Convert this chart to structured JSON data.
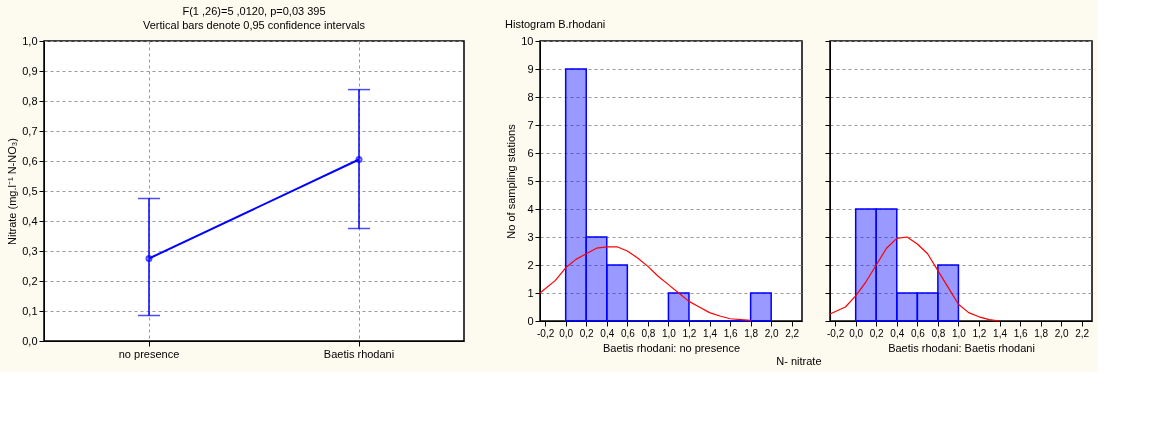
{
  "chart_data": [
    {
      "type": "line",
      "title": "F(1 ,26)=5 ,0120, p=0,03 395",
      "subtitle": "Vertical bars denote 0,95 confidence intervals",
      "ylabel": "Nitrate (mg.l⁻¹ N-NO₃)",
      "categories": [
        "no presence",
        "Baetis rhodani"
      ],
      "series": [
        {
          "color": "#0000ff",
          "values": [
            0.275,
            0.605
          ],
          "errors": [
            [
              0.085,
              0.475
            ],
            [
              0.375,
              0.838
            ]
          ]
        }
      ],
      "ylim": [
        0,
        1
      ],
      "yticks": [
        {
          "value": 0,
          "label": "0,0"
        },
        {
          "value": 0.1,
          "label": "0,1"
        },
        {
          "value": 0.2,
          "label": "0,2"
        },
        {
          "value": 0.3,
          "label": "0,3"
        },
        {
          "value": 0.4,
          "label": "0,4"
        },
        {
          "value": 0.5,
          "label": "0,5"
        },
        {
          "value": 0.6,
          "label": "0,6"
        },
        {
          "value": 0.7,
          "label": "0,7"
        },
        {
          "value": 0.8,
          "label": "0,8"
        },
        {
          "value": 0.9,
          "label": "0,9"
        },
        {
          "value": 1,
          "label": "1,0"
        }
      ],
      "grid": true,
      "marker": "circle",
      "line_style": "solid"
    },
    {
      "type": "histogram",
      "title": "Histogram B.rhodani",
      "ylabel": "No of sampling stations",
      "xlabel": "Baetis rhodani: no presence",
      "color": "#0000ff",
      "bins": [
        0,
        0.2,
        0.4,
        0.6,
        0.8,
        1.0,
        1.2,
        1.4,
        1.6,
        1.8,
        2.0
      ],
      "values": [
        9,
        3,
        2,
        0,
        0,
        1,
        0,
        0,
        0,
        1
      ],
      "series": [
        {
          "type": "line",
          "color": "#ff0000",
          "x": [
            -0.25,
            -0.1,
            0.0,
            0.1,
            0.2,
            0.3,
            0.4,
            0.5,
            0.6,
            0.7,
            0.8,
            0.9,
            1.0,
            1.1,
            1.2,
            1.3,
            1.4,
            1.5,
            1.6,
            1.8
          ],
          "values": [
            1.0,
            1.45,
            1.9,
            2.2,
            2.4,
            2.6,
            2.65,
            2.65,
            2.5,
            2.25,
            1.95,
            1.6,
            1.3,
            1.0,
            0.7,
            0.5,
            0.3,
            0.18,
            0.08,
            0.02
          ]
        }
      ],
      "xlim": [
        -0.25,
        2.3
      ],
      "xticks": [
        {
          "value": -0.2,
          "label": "-0,2"
        },
        {
          "value": 0,
          "label": "0,0"
        },
        {
          "value": 0.2,
          "label": "0,2"
        },
        {
          "value": 0.4,
          "label": "0,4"
        },
        {
          "value": 0.6,
          "label": "0,6"
        },
        {
          "value": 0.8,
          "label": "0,8"
        },
        {
          "value": 1.0,
          "label": "1,0"
        },
        {
          "value": 1.2,
          "label": "1,2"
        },
        {
          "value": 1.4,
          "label": "1,4"
        },
        {
          "value": 1.6,
          "label": "1,6"
        },
        {
          "value": 1.8,
          "label": "1,8"
        },
        {
          "value": 2.0,
          "label": "2,0"
        },
        {
          "value": 2.2,
          "label": "2,2"
        }
      ],
      "ylim": [
        0,
        10
      ],
      "yticks": [
        0,
        1,
        2,
        3,
        4,
        5,
        6,
        7,
        8,
        9,
        10
      ],
      "grid": "y"
    },
    {
      "type": "histogram",
      "xlabel": "Baetis rhodani: Baetis rhodani",
      "color": "#0000ff",
      "annotations": [
        "N- nitrate"
      ],
      "bins": [
        0,
        0.2,
        0.4,
        0.6,
        0.8,
        1.0
      ],
      "values": [
        4,
        4,
        1,
        1,
        2
      ],
      "series": [
        {
          "type": "line",
          "color": "#ff0000",
          "x": [
            -0.25,
            -0.1,
            0.0,
            0.1,
            0.2,
            0.3,
            0.4,
            0.5,
            0.6,
            0.7,
            0.8,
            0.9,
            1.0,
            1.1,
            1.2,
            1.3,
            1.4
          ],
          "values": [
            0.25,
            0.5,
            0.9,
            1.4,
            2.0,
            2.6,
            2.95,
            3.0,
            2.75,
            2.4,
            1.8,
            1.2,
            0.6,
            0.3,
            0.15,
            0.05,
            0
          ]
        }
      ],
      "xlim": [
        -0.25,
        2.3
      ],
      "xticks": [
        {
          "value": -0.2,
          "label": "-0,2"
        },
        {
          "value": 0,
          "label": "0,0"
        },
        {
          "value": 0.2,
          "label": "0,2"
        },
        {
          "value": 0.4,
          "label": "0,4"
        },
        {
          "value": 0.6,
          "label": "0,6"
        },
        {
          "value": 0.8,
          "label": "0,8"
        },
        {
          "value": 1.0,
          "label": "1,0"
        },
        {
          "value": 1.2,
          "label": "1,2"
        },
        {
          "value": 1.4,
          "label": "1,4"
        },
        {
          "value": 1.6,
          "label": "1,6"
        },
        {
          "value": 1.8,
          "label": "1,8"
        },
        {
          "value": 2.0,
          "label": "2,0"
        },
        {
          "value": 2.2,
          "label": "2,2"
        }
      ],
      "ylim": [
        0,
        10
      ],
      "yticks": [
        0,
        1,
        2,
        3,
        4,
        5,
        6,
        7,
        8,
        9,
        10
      ],
      "grid": "y",
      "tick_labels": "x"
    }
  ]
}
